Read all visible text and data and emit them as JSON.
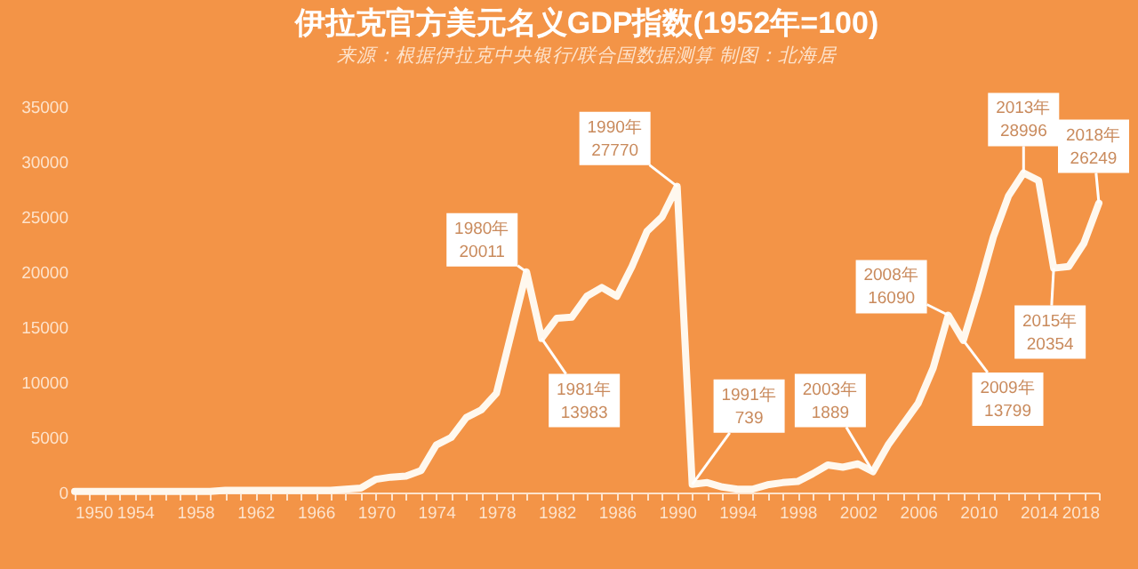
{
  "chart_data": {
    "type": "line",
    "title": "伊拉克官方美元名义GDP指数(1952年=100)",
    "subtitle": "来源：根据伊拉克中央银行/联合国数据测算 制图：北海居",
    "x": [
      1950,
      1951,
      1952,
      1953,
      1954,
      1955,
      1956,
      1957,
      1958,
      1959,
      1960,
      1961,
      1962,
      1963,
      1964,
      1965,
      1966,
      1967,
      1968,
      1969,
      1970,
      1971,
      1972,
      1973,
      1974,
      1975,
      1976,
      1977,
      1978,
      1979,
      1980,
      1981,
      1982,
      1983,
      1984,
      1985,
      1986,
      1987,
      1988,
      1989,
      1990,
      1991,
      1992,
      1993,
      1994,
      1995,
      1996,
      1997,
      1998,
      1999,
      2000,
      2001,
      2002,
      2003,
      2004,
      2005,
      2006,
      2007,
      2008,
      2009,
      2010,
      2011,
      2012,
      2013,
      2014,
      2015,
      2016,
      2017,
      2018
    ],
    "series": [
      {
        "color": "#fff8ee",
        "values": [
          100,
          100,
          100,
          100,
          100,
          100,
          100,
          100,
          100,
          100,
          200,
          200,
          200,
          200,
          200,
          200,
          200,
          200,
          300,
          400,
          1200,
          1400,
          1500,
          2000,
          4300,
          5000,
          6800,
          7500,
          9000,
          14500,
          20011,
          13983,
          15800,
          15900,
          17800,
          18600,
          17800,
          20500,
          23700,
          25000,
          27770,
          739,
          900,
          500,
          300,
          300,
          700,
          900,
          1000,
          1700,
          2500,
          2300,
          2600,
          1889,
          4300,
          6200,
          8100,
          11300,
          16090,
          13799,
          18300,
          23200,
          26900,
          28996,
          28300,
          20354,
          20500,
          22600,
          26249
        ]
      }
    ],
    "xlim": [
      1950,
      2018
    ],
    "ylim": [
      0,
      35000
    ],
    "xticks": [
      1950,
      {
        "value": 1951,
        "label": null
      },
      {
        "value": 1952,
        "label": null
      },
      {
        "value": 1953,
        "label": null
      },
      1954,
      {
        "value": 1955,
        "label": null
      },
      {
        "value": 1956,
        "label": null
      },
      {
        "value": 1957,
        "label": null
      },
      1958,
      {
        "value": 1959,
        "label": null
      },
      {
        "value": 1960,
        "label": null
      },
      {
        "value": 1961,
        "label": null
      },
      1962,
      {
        "value": 1963,
        "label": null
      },
      {
        "value": 1964,
        "label": null
      },
      {
        "value": 1965,
        "label": null
      },
      1966,
      {
        "value": 1967,
        "label": null
      },
      {
        "value": 1968,
        "label": null
      },
      {
        "value": 1969,
        "label": null
      },
      1970,
      {
        "value": 1971,
        "label": null
      },
      {
        "value": 1972,
        "label": null
      },
      {
        "value": 1973,
        "label": null
      },
      1974,
      {
        "value": 1975,
        "label": null
      },
      {
        "value": 1976,
        "label": null
      },
      {
        "value": 1977,
        "label": null
      },
      1978,
      {
        "value": 1979,
        "label": null
      },
      {
        "value": 1980,
        "label": null
      },
      {
        "value": 1981,
        "label": null
      },
      1982,
      {
        "value": 1983,
        "label": null
      },
      {
        "value": 1984,
        "label": null
      },
      {
        "value": 1985,
        "label": null
      },
      1986,
      {
        "value": 1987,
        "label": null
      },
      {
        "value": 1988,
        "label": null
      },
      {
        "value": 1989,
        "label": null
      },
      1990,
      {
        "value": 1991,
        "label": null
      },
      {
        "value": 1992,
        "label": null
      },
      {
        "value": 1993,
        "label": null
      },
      1994,
      {
        "value": 1995,
        "label": null
      },
      {
        "value": 1996,
        "label": null
      },
      {
        "value": 1997,
        "label": null
      },
      1998,
      {
        "value": 1999,
        "label": null
      },
      {
        "value": 2000,
        "label": null
      },
      {
        "value": 2001,
        "label": null
      },
      2002,
      {
        "value": 2003,
        "label": null
      },
      {
        "value": 2004,
        "label": null
      },
      {
        "value": 2005,
        "label": null
      },
      2006,
      {
        "value": 2007,
        "label": null
      },
      {
        "value": 2008,
        "label": null
      },
      {
        "value": 2009,
        "label": null
      },
      2010,
      {
        "value": 2011,
        "label": null
      },
      {
        "value": 2012,
        "label": null
      },
      {
        "value": 2013,
        "label": null
      },
      2014,
      {
        "value": 2015,
        "label": null
      },
      {
        "value": 2016,
        "label": null
      },
      {
        "value": 2017,
        "label": null
      },
      2018
    ],
    "yticks": [
      0,
      5000,
      10000,
      15000,
      20000,
      25000,
      30000,
      35000
    ],
    "grid": false,
    "marker": "none",
    "line_style": "solid",
    "annotations": [
      {
        "text": "1980年\n20011",
        "x": 1980,
        "y": 20011
      },
      {
        "text": "1981年\n13983",
        "x": 1981,
        "y": 13983
      },
      {
        "text": "1990年\n27770",
        "x": 1990,
        "y": 27770
      },
      {
        "text": "1991年\n739",
        "x": 1991,
        "y": 739
      },
      {
        "text": "2003年\n1889",
        "x": 2003,
        "y": 1889
      },
      {
        "text": "2008年\n16090",
        "x": 2008,
        "y": 16090
      },
      {
        "text": "2009年\n13799",
        "x": 2009,
        "y": 13799
      },
      {
        "text": "2013年\n28996",
        "x": 2013,
        "y": 28996
      },
      {
        "text": "2015年\n20354",
        "x": 2015,
        "y": 20354
      },
      {
        "text": "2018年\n26249",
        "x": 2018,
        "y": 26249
      }
    ]
  }
}
